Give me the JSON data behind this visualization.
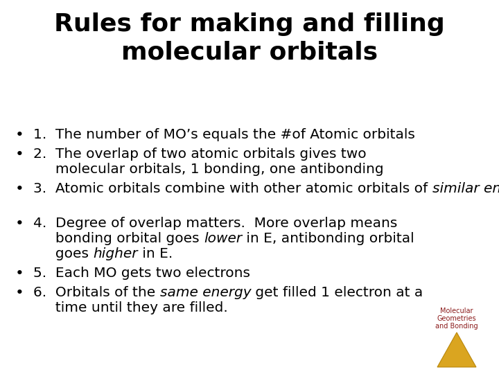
{
  "title_line1": "Rules for making and filling",
  "title_line2": "molecular orbitals",
  "title_fontsize": 26,
  "title_color": "#000000",
  "bg_color": "#ffffff",
  "bullet_color": "#000000",
  "bullet_fontsize": 14.5,
  "logo_text": "Molecular\nGeometries\nand Bonding",
  "logo_text_color": "#8B1A1A",
  "logo_triangle_face": "#DAA520",
  "logo_triangle_edge": "#B8860B",
  "bullets": [
    {
      "lines": [
        [
          {
            "text": "1.  The number of MO’s equals the #of Atomic orbitals",
            "italic": false
          }
        ]
      ]
    },
    {
      "lines": [
        [
          {
            "text": "2.  The overlap of two atomic orbitals gives two",
            "italic": false
          }
        ],
        [
          {
            "text": "     molecular orbitals, 1 bonding, one antibonding",
            "italic": false
          }
        ]
      ]
    },
    {
      "lines": [
        [
          {
            "text": "3.  Atomic orbitals combine with other atomic orbitals of ",
            "italic": false
          },
          {
            "text": "similar energy",
            "italic": true
          },
          {
            "text": ".",
            "italic": false
          }
        ],
        [
          {
            "text": "     ",
            "italic": false
          }
        ]
      ]
    },
    {
      "lines": [
        [
          {
            "text": "4.  Degree of overlap matters.  More overlap means",
            "italic": false
          }
        ],
        [
          {
            "text": "     bonding orbital goes ",
            "italic": false
          },
          {
            "text": "lower",
            "italic": true
          },
          {
            "text": " in E, antibonding orbital",
            "italic": false
          }
        ],
        [
          {
            "text": "     goes ",
            "italic": false
          },
          {
            "text": "higher",
            "italic": true
          },
          {
            "text": " in E.",
            "italic": false
          }
        ]
      ]
    },
    {
      "lines": [
        [
          {
            "text": "5.  Each MO gets two electrons",
            "italic": false
          }
        ]
      ]
    },
    {
      "lines": [
        [
          {
            "text": "6.  Orbitals of the ",
            "italic": false
          },
          {
            "text": "same energy",
            "italic": true
          },
          {
            "text": " get filled 1 electron at a",
            "italic": false
          }
        ],
        [
          {
            "text": "     time until they are filled.",
            "italic": false
          }
        ]
      ]
    }
  ]
}
